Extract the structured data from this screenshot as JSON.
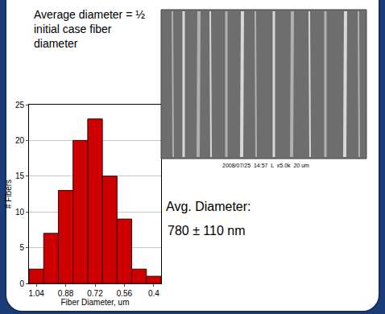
{
  "chart_data": {
    "type": "histogram",
    "x_label": "Fiber Diameter, um",
    "y_label": "# Fibers",
    "bins": [
      1.08,
      1.0,
      0.92,
      0.84,
      0.76,
      0.68,
      0.6,
      0.52,
      0.44,
      0.36
    ],
    "values": [
      2,
      7,
      13,
      20,
      23,
      15,
      9,
      2,
      1
    ],
    "color": "#cc0000",
    "xlim": [
      1.08,
      0.36
    ],
    "xticks": [
      1.04,
      0.88,
      0.72,
      0.56,
      0.4
    ],
    "ylim": [
      0,
      25
    ],
    "yticks": [
      0,
      5,
      10,
      15,
      20,
      25
    ],
    "grid": true,
    "annotations": [
      "Average diameter = ½ initial case fiber diameter",
      "Avg. Diameter:",
      "780 ± 110 nm",
      "2008/07/25  14:57  L  x5.0k  20 um"
    ]
  }
}
